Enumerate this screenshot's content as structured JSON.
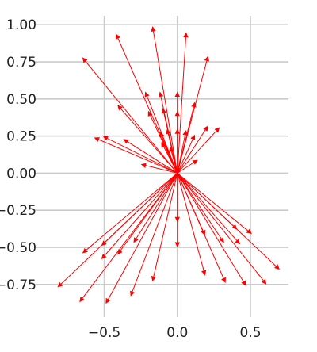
{
  "chart_data": {
    "type": "quiver",
    "title": "",
    "xlabel": "",
    "ylabel": "",
    "xlim": [
      -0.98,
      0.76
    ],
    "ylim": [
      1.06,
      -0.97
    ],
    "y_axis_inverted": true,
    "grid": true,
    "style": "fivethirtyeight",
    "arrow_color": "#ff0000",
    "grid_color": "#cbcbcb",
    "x_ticks": [
      -0.5,
      0.0,
      0.5
    ],
    "x_tick_labels": [
      "−0.5",
      "0.0",
      "0.5"
    ],
    "y_ticks": [
      -0.75,
      -0.5,
      -0.25,
      0.0,
      0.25,
      0.5,
      0.75,
      1.0
    ],
    "y_tick_labels": [
      "−0.75",
      "−0.50",
      "−0.25",
      "0.00",
      "0.25",
      "0.50",
      "0.75",
      "1.00"
    ],
    "origin": [
      0,
      0
    ],
    "vectors": [
      {
        "dx": -0.82,
        "dy": -0.77
      },
      {
        "dx": -0.67,
        "dy": -0.87
      },
      {
        "dx": -0.49,
        "dy": -0.88
      },
      {
        "dx": -0.32,
        "dy": -0.83
      },
      {
        "dx": -0.17,
        "dy": -0.73
      },
      {
        "dx": -0.65,
        "dy": -0.54
      },
      {
        "dx": -0.52,
        "dy": -0.58
      },
      {
        "dx": -0.52,
        "dy": -0.49
      },
      {
        "dx": -0.41,
        "dy": -0.55
      },
      {
        "dx": -0.3,
        "dy": -0.47
      },
      {
        "dx": 0.0,
        "dy": -0.5
      },
      {
        "dx": 0.0,
        "dy": -0.33
      },
      {
        "dx": 0.19,
        "dy": -0.69
      },
      {
        "dx": 0.33,
        "dy": -0.74
      },
      {
        "dx": 0.47,
        "dy": -0.76
      },
      {
        "dx": 0.61,
        "dy": -0.75
      },
      {
        "dx": 0.7,
        "dy": -0.65
      },
      {
        "dx": 0.19,
        "dy": -0.42
      },
      {
        "dx": 0.32,
        "dy": -0.47
      },
      {
        "dx": 0.43,
        "dy": -0.48
      },
      {
        "dx": 0.41,
        "dy": -0.38
      },
      {
        "dx": 0.51,
        "dy": -0.41
      },
      {
        "dx": -0.25,
        "dy": 0.06
      },
      {
        "dx": -0.57,
        "dy": 0.24
      },
      {
        "dx": -0.51,
        "dy": 0.25
      },
      {
        "dx": -0.37,
        "dy": 0.23
      },
      {
        "dx": -0.41,
        "dy": 0.46
      },
      {
        "dx": -0.65,
        "dy": 0.78
      },
      {
        "dx": -0.42,
        "dy": 0.94
      },
      {
        "dx": -0.17,
        "dy": 0.99
      },
      {
        "dx": -0.12,
        "dy": 0.28
      },
      {
        "dx": -0.11,
        "dy": 0.21
      },
      {
        "dx": -0.22,
        "dy": 0.55
      },
      {
        "dx": -0.2,
        "dy": 0.42
      },
      {
        "dx": -0.12,
        "dy": 0.55
      },
      {
        "dx": -0.1,
        "dy": 0.44
      },
      {
        "dx": -0.07,
        "dy": 0.3
      },
      {
        "dx": -0.05,
        "dy": 0.18
      },
      {
        "dx": 0.0,
        "dy": 0.55
      },
      {
        "dx": 0.0,
        "dy": 0.42
      },
      {
        "dx": 0.0,
        "dy": 0.3
      },
      {
        "dx": 0.06,
        "dy": 0.95
      },
      {
        "dx": 0.21,
        "dy": 0.79
      },
      {
        "dx": 0.12,
        "dy": 0.48
      },
      {
        "dx": 0.06,
        "dy": 0.29
      },
      {
        "dx": 0.12,
        "dy": 0.26
      },
      {
        "dx": 0.21,
        "dy": 0.32
      },
      {
        "dx": 0.29,
        "dy": 0.31
      },
      {
        "dx": 0.14,
        "dy": 0.09
      }
    ]
  }
}
